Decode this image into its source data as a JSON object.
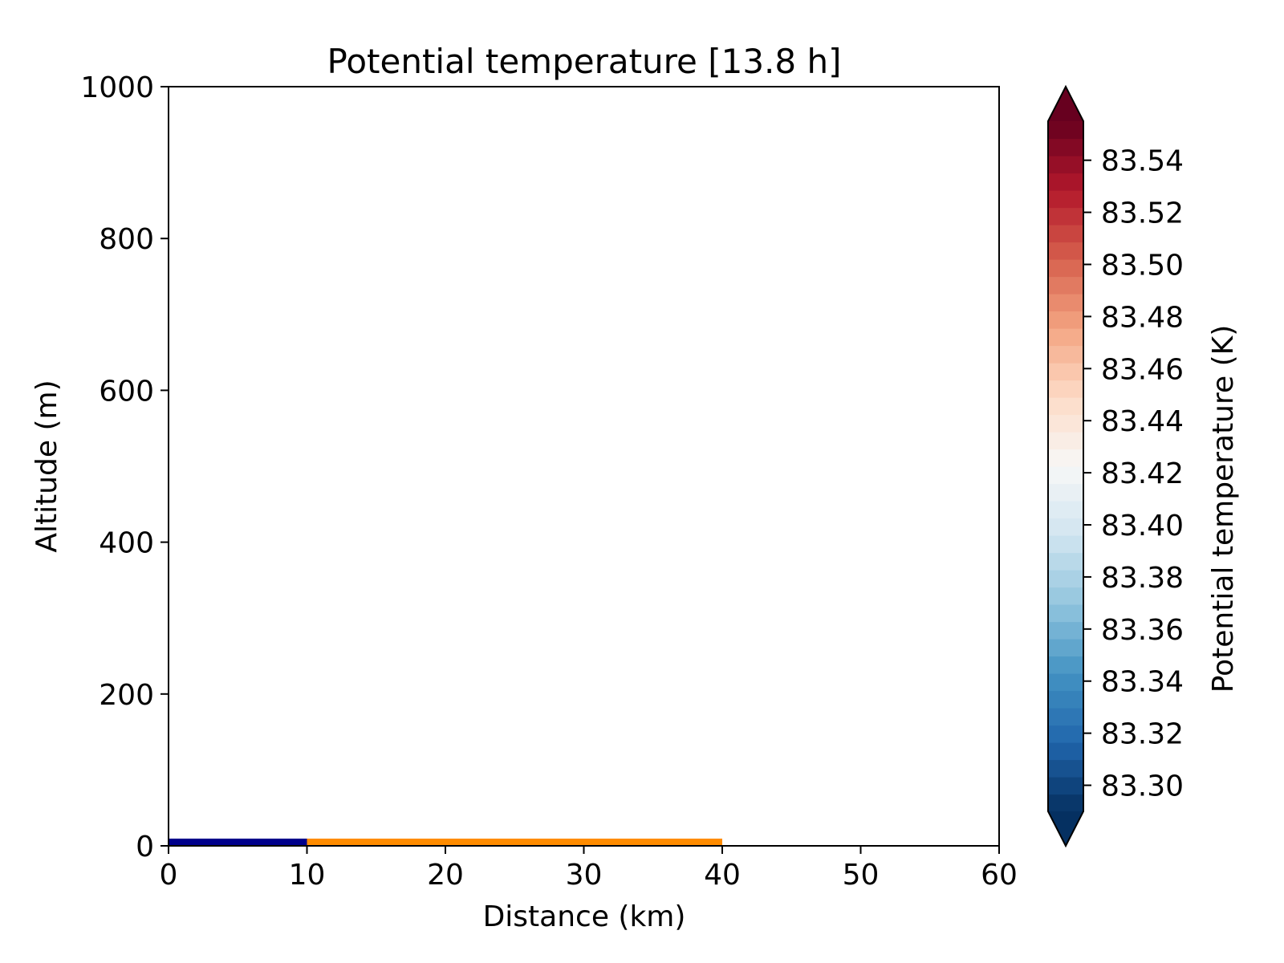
{
  "chart_data": {
    "type": "heatmap",
    "title": "Potential temperature [13.8 h]",
    "xlabel": "Distance (km)",
    "ylabel": "Altitude (m)",
    "xlim": [
      0,
      60
    ],
    "ylim": [
      0,
      1000
    ],
    "x_ticks": [
      0,
      10,
      20,
      30,
      40,
      50,
      60
    ],
    "y_ticks": [
      0,
      200,
      400,
      600,
      800,
      1000
    ],
    "grid": false,
    "field": "empty (no contours drawn)",
    "surface_segments": [
      {
        "x_start": 0,
        "x_end": 10,
        "color": "#00008b"
      },
      {
        "x_start": 10,
        "x_end": 40,
        "color": "#ff8c00"
      }
    ],
    "colorbar": {
      "label": "Potential temperature (K)",
      "colormap": "RdBu_r",
      "min": 83.29,
      "max": 83.555,
      "ticks": [
        "83.30",
        "83.32",
        "83.34",
        "83.36",
        "83.38",
        "83.40",
        "83.42",
        "83.44",
        "83.46",
        "83.48",
        "83.50",
        "83.52",
        "83.54"
      ],
      "extend": "both",
      "levels": 40
    }
  }
}
